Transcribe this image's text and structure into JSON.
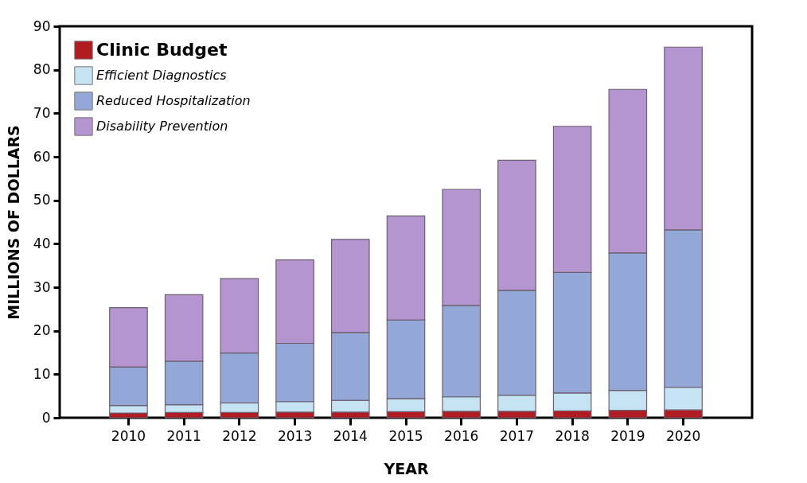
{
  "chart_data": {
    "type": "bar",
    "stacked": true,
    "xlabel": "YEAR",
    "ylabel": "MILLIONS OF DOLLARS",
    "categories": [
      "2010",
      "2011",
      "2012",
      "2013",
      "2014",
      "2015",
      "2016",
      "2017",
      "2018",
      "2019",
      "2020"
    ],
    "series": [
      {
        "name": "Clinic Budget",
        "color": "#b01c22",
        "values": [
          1.1,
          1.2,
          1.2,
          1.3,
          1.3,
          1.4,
          1.5,
          1.5,
          1.6,
          1.7,
          1.8
        ]
      },
      {
        "name": "Efficient Diagnostics",
        "color": "#c5e3f2",
        "values": [
          1.7,
          1.8,
          2.2,
          2.4,
          2.7,
          3.0,
          3.3,
          3.7,
          4.1,
          4.6,
          5.2
        ]
      },
      {
        "name": "Reduced Hospitalization",
        "color": "#94a8d8",
        "values": [
          8.9,
          10.0,
          11.5,
          13.4,
          15.6,
          18.1,
          21.0,
          24.1,
          27.7,
          31.6,
          36.2
        ]
      },
      {
        "name": "Disability Prevention",
        "color": "#b595cf",
        "values": [
          13.6,
          15.3,
          17.1,
          19.2,
          21.4,
          23.9,
          26.7,
          29.9,
          33.6,
          37.6,
          42.0
        ]
      }
    ],
    "ylim": [
      0,
      90
    ],
    "yticks": [
      0,
      10,
      20,
      30,
      40,
      50,
      60,
      70,
      80,
      90
    ],
    "legend": "top left"
  }
}
